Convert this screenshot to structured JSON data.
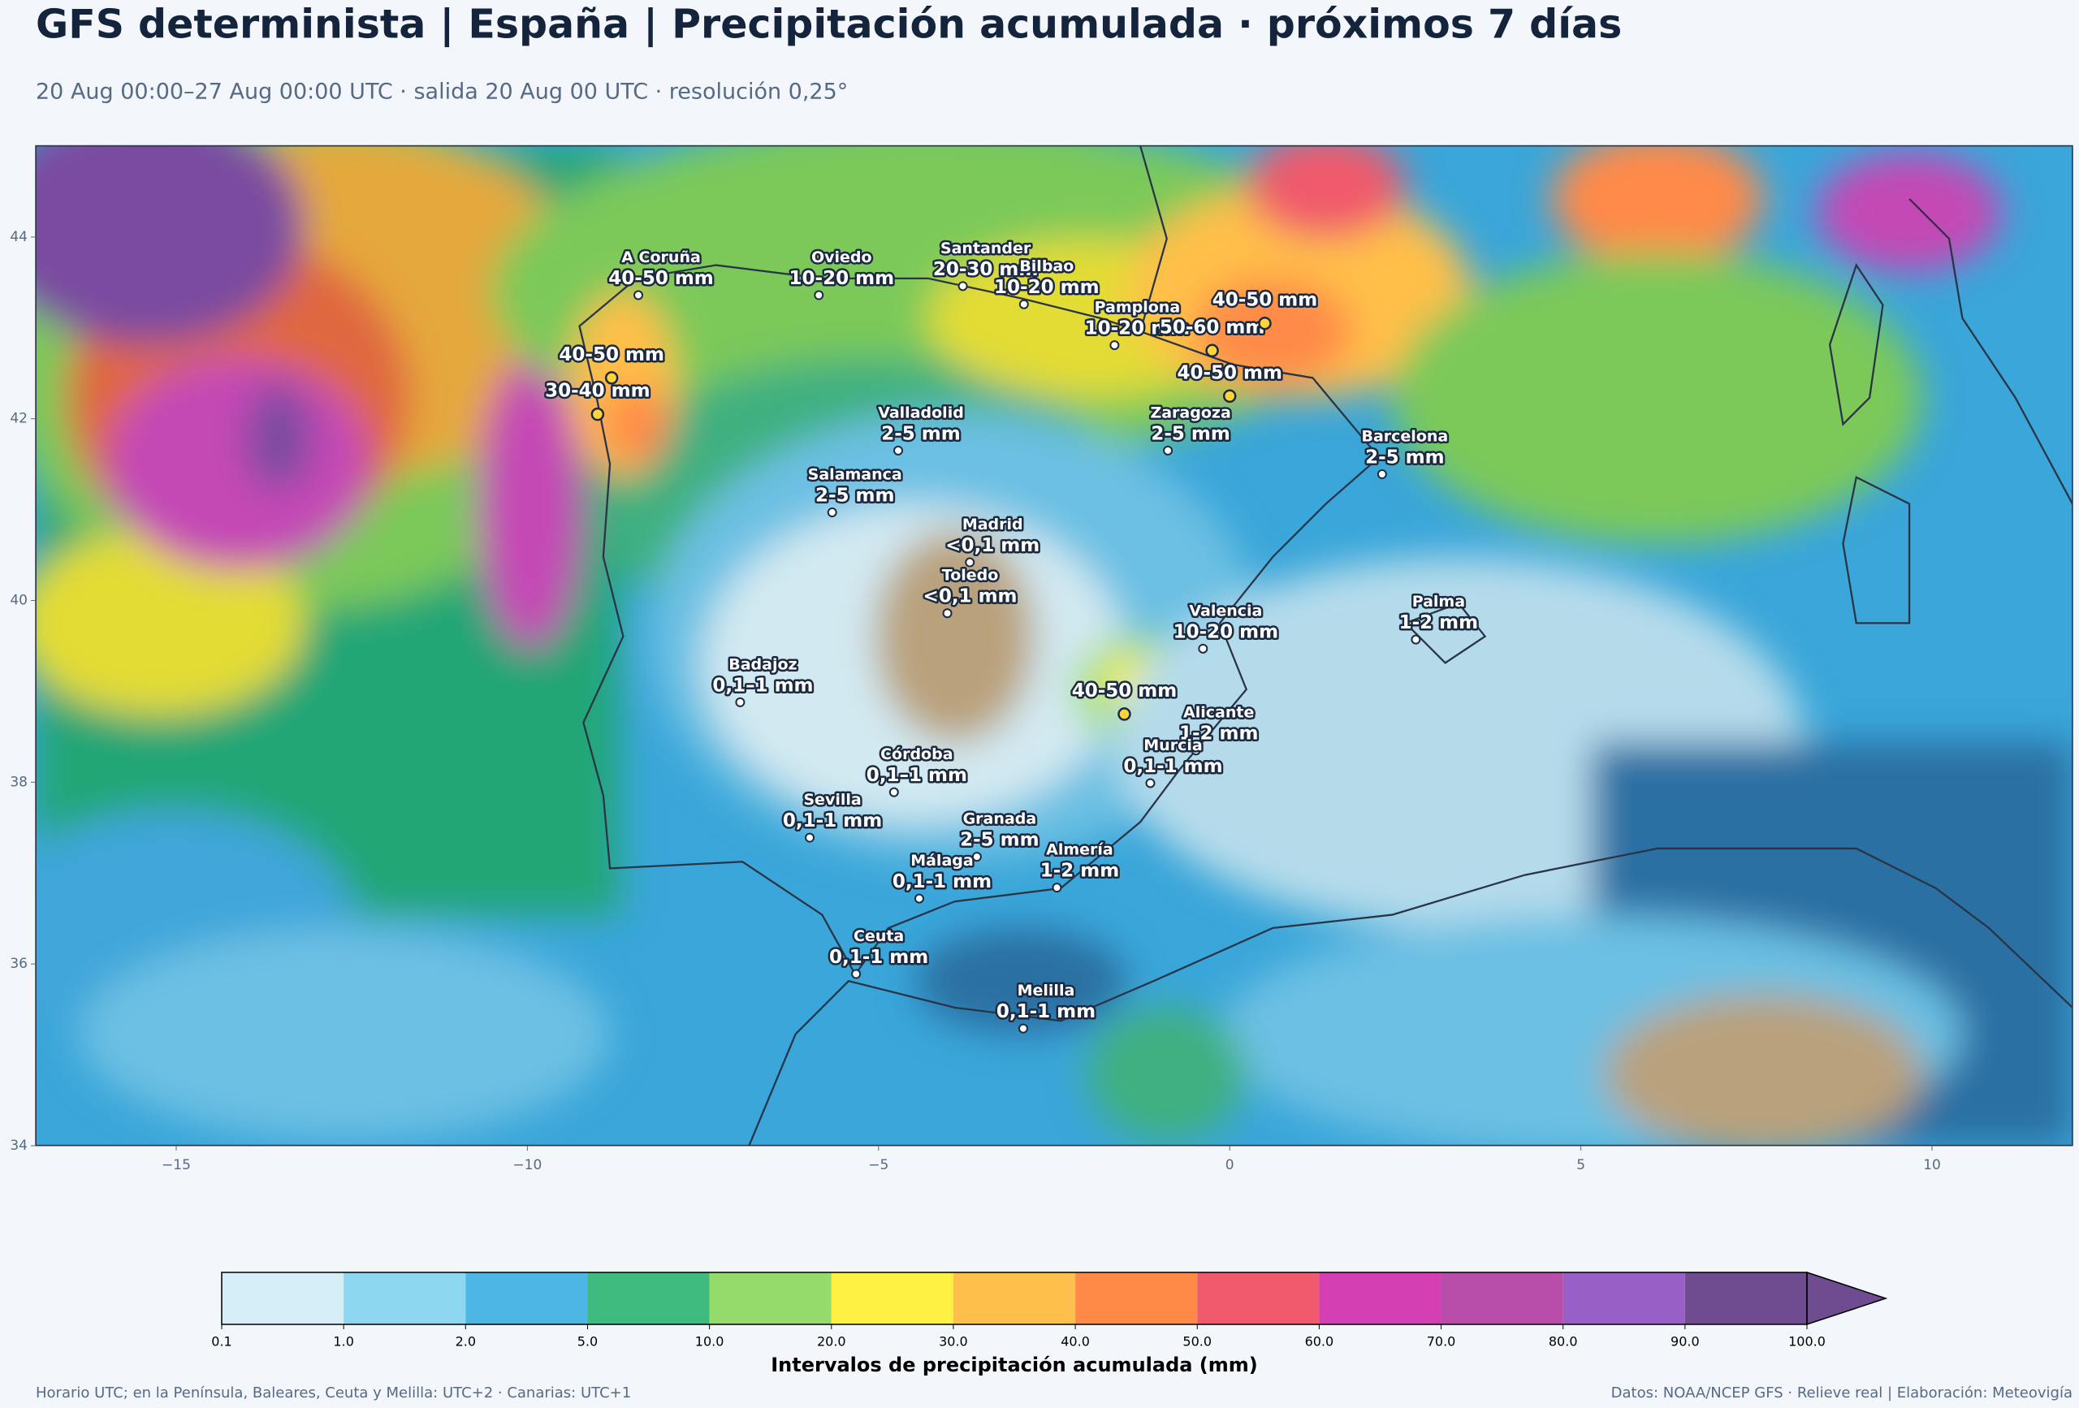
{
  "title": "GFS determinista | España | Precipitación acumulada · próximos 7 días",
  "subtitle": "20 Aug 00:00–27 Aug 00:00 UTC · salida 20 Aug 00 UTC · resolución 0,25°",
  "map": {
    "xlim": [
      -17,
      12
    ],
    "ylim": [
      34,
      45
    ],
    "xticks": [
      {
        "value": -15,
        "label": "−15"
      },
      {
        "value": -10,
        "label": "−10"
      },
      {
        "value": -5,
        "label": "−5"
      },
      0,
      5,
      10
    ],
    "yticks": [
      34,
      36,
      38,
      40,
      42,
      44
    ]
  },
  "cities": [
    {
      "name": "A Coruña",
      "value": "40-50 mm",
      "lon": -8.42,
      "lat": 43.36
    },
    {
      "name": "Oviedo",
      "value": "10-20 mm",
      "lon": -5.85,
      "lat": 43.36
    },
    {
      "name": "Santander",
      "value": "20-30 mm",
      "lon": -3.8,
      "lat": 43.46
    },
    {
      "name": "Bilbao",
      "value": "10-20 mm",
      "lon": -2.93,
      "lat": 43.26
    },
    {
      "name": "Pamplona",
      "value": "10-20 mm",
      "lon": -1.64,
      "lat": 42.81
    },
    {
      "name": "Valladolid",
      "value": "2-5 mm",
      "lon": -4.72,
      "lat": 41.65
    },
    {
      "name": "Zaragoza",
      "value": "2-5 mm",
      "lon": -0.88,
      "lat": 41.65
    },
    {
      "name": "Barcelona",
      "value": "2-5 mm",
      "lon": 2.17,
      "lat": 41.39
    },
    {
      "name": "Salamanca",
      "value": "2-5 mm",
      "lon": -5.66,
      "lat": 40.97
    },
    {
      "name": "Madrid",
      "value": "<0,1 mm",
      "lon": -3.7,
      "lat": 40.42
    },
    {
      "name": "Toledo",
      "value": "<0,1 mm",
      "lon": -4.02,
      "lat": 39.86
    },
    {
      "name": "Valencia",
      "value": "10-20 mm",
      "lon": -0.38,
      "lat": 39.47
    },
    {
      "name": "Badajoz",
      "value": "0,1–1 mm",
      "lon": -6.97,
      "lat": 38.88
    },
    {
      "name": "Palma",
      "value": "1-2 mm",
      "lon": 2.65,
      "lat": 39.57
    },
    {
      "name": "Córdoba",
      "value": "0,1–1 mm",
      "lon": -4.78,
      "lat": 37.89
    },
    {
      "name": "Alicante",
      "value": "1-2 mm",
      "lon": -0.48,
      "lat": 38.35
    },
    {
      "name": "Murcia",
      "value": "0,1-1 mm",
      "lon": -1.13,
      "lat": 37.99
    },
    {
      "name": "Granada",
      "value": "2-5 mm",
      "lon": -3.6,
      "lat": 37.18
    },
    {
      "name": "Sevilla",
      "value": "0,1-1 mm",
      "lon": -5.98,
      "lat": 37.39
    },
    {
      "name": "Málaga",
      "value": "0,1-1 mm",
      "lon": -4.42,
      "lat": 36.72
    },
    {
      "name": "Almería",
      "value": "1-2 mm",
      "lon": -2.46,
      "lat": 36.84
    },
    {
      "name": "Ceuta",
      "value": "0,1-1 mm",
      "lon": -5.32,
      "lat": 35.89
    },
    {
      "name": "Melilla",
      "value": "0,1-1 mm",
      "lon": -2.94,
      "lat": 35.29
    }
  ],
  "spots": [
    {
      "value": "40-50 mm",
      "lon": -8.8,
      "lat": 42.45
    },
    {
      "value": "30-40 mm",
      "lon": -9.0,
      "lat": 42.05
    },
    {
      "value": "40-50 mm",
      "lon": 0.0,
      "lat": 42.25
    },
    {
      "value": "50-60 mm",
      "lon": -0.25,
      "lat": 42.75
    },
    {
      "value": "40-50 mm",
      "lon": 0.5,
      "lat": 43.05
    },
    {
      "value": "40-50 mm",
      "lon": -1.5,
      "lat": 38.75
    }
  ],
  "colorbar": {
    "label": "Intervalos de precipitación acumulada (mm)",
    "bounds": [
      0.1,
      {
        "value": 1,
        "label": "1.0"
      },
      {
        "value": 2,
        "label": "2.0"
      },
      {
        "value": 5,
        "label": "5.0"
      },
      {
        "value": 10,
        "label": "10.0"
      },
      {
        "value": 20,
        "label": "20.0"
      },
      {
        "value": 30,
        "label": "30.0"
      },
      {
        "value": 40,
        "label": "40.0"
      },
      {
        "value": 50,
        "label": "50.0"
      },
      {
        "value": 60,
        "label": "60.0"
      },
      {
        "value": 70,
        "label": "70.0"
      },
      {
        "value": 80,
        "label": "80.0"
      },
      {
        "value": 90,
        "label": "90.0"
      },
      {
        "value": 100,
        "label": "100.0"
      }
    ],
    "colors": [
      "#d6eef7",
      "#8dd6ef",
      "#4db6e2",
      "#3fbb80",
      "#95db6c",
      "#fff143",
      "#ffbf4a",
      "#ff8a48",
      "#f05a6c",
      "#d43fb4",
      "#b84ea9",
      "#9860c6",
      "#6e4c8f"
    ],
    "extend_color": "#6e4c8f"
  },
  "footer": {
    "left": "Horario UTC; en la Península, Baleares, Ceuta y Melilla: UTC+2 · Canarias: UTC+1",
    "right": "Datos: NOAA/NCEP GFS · Relieve real | Elaboración: Meteovigía"
  }
}
